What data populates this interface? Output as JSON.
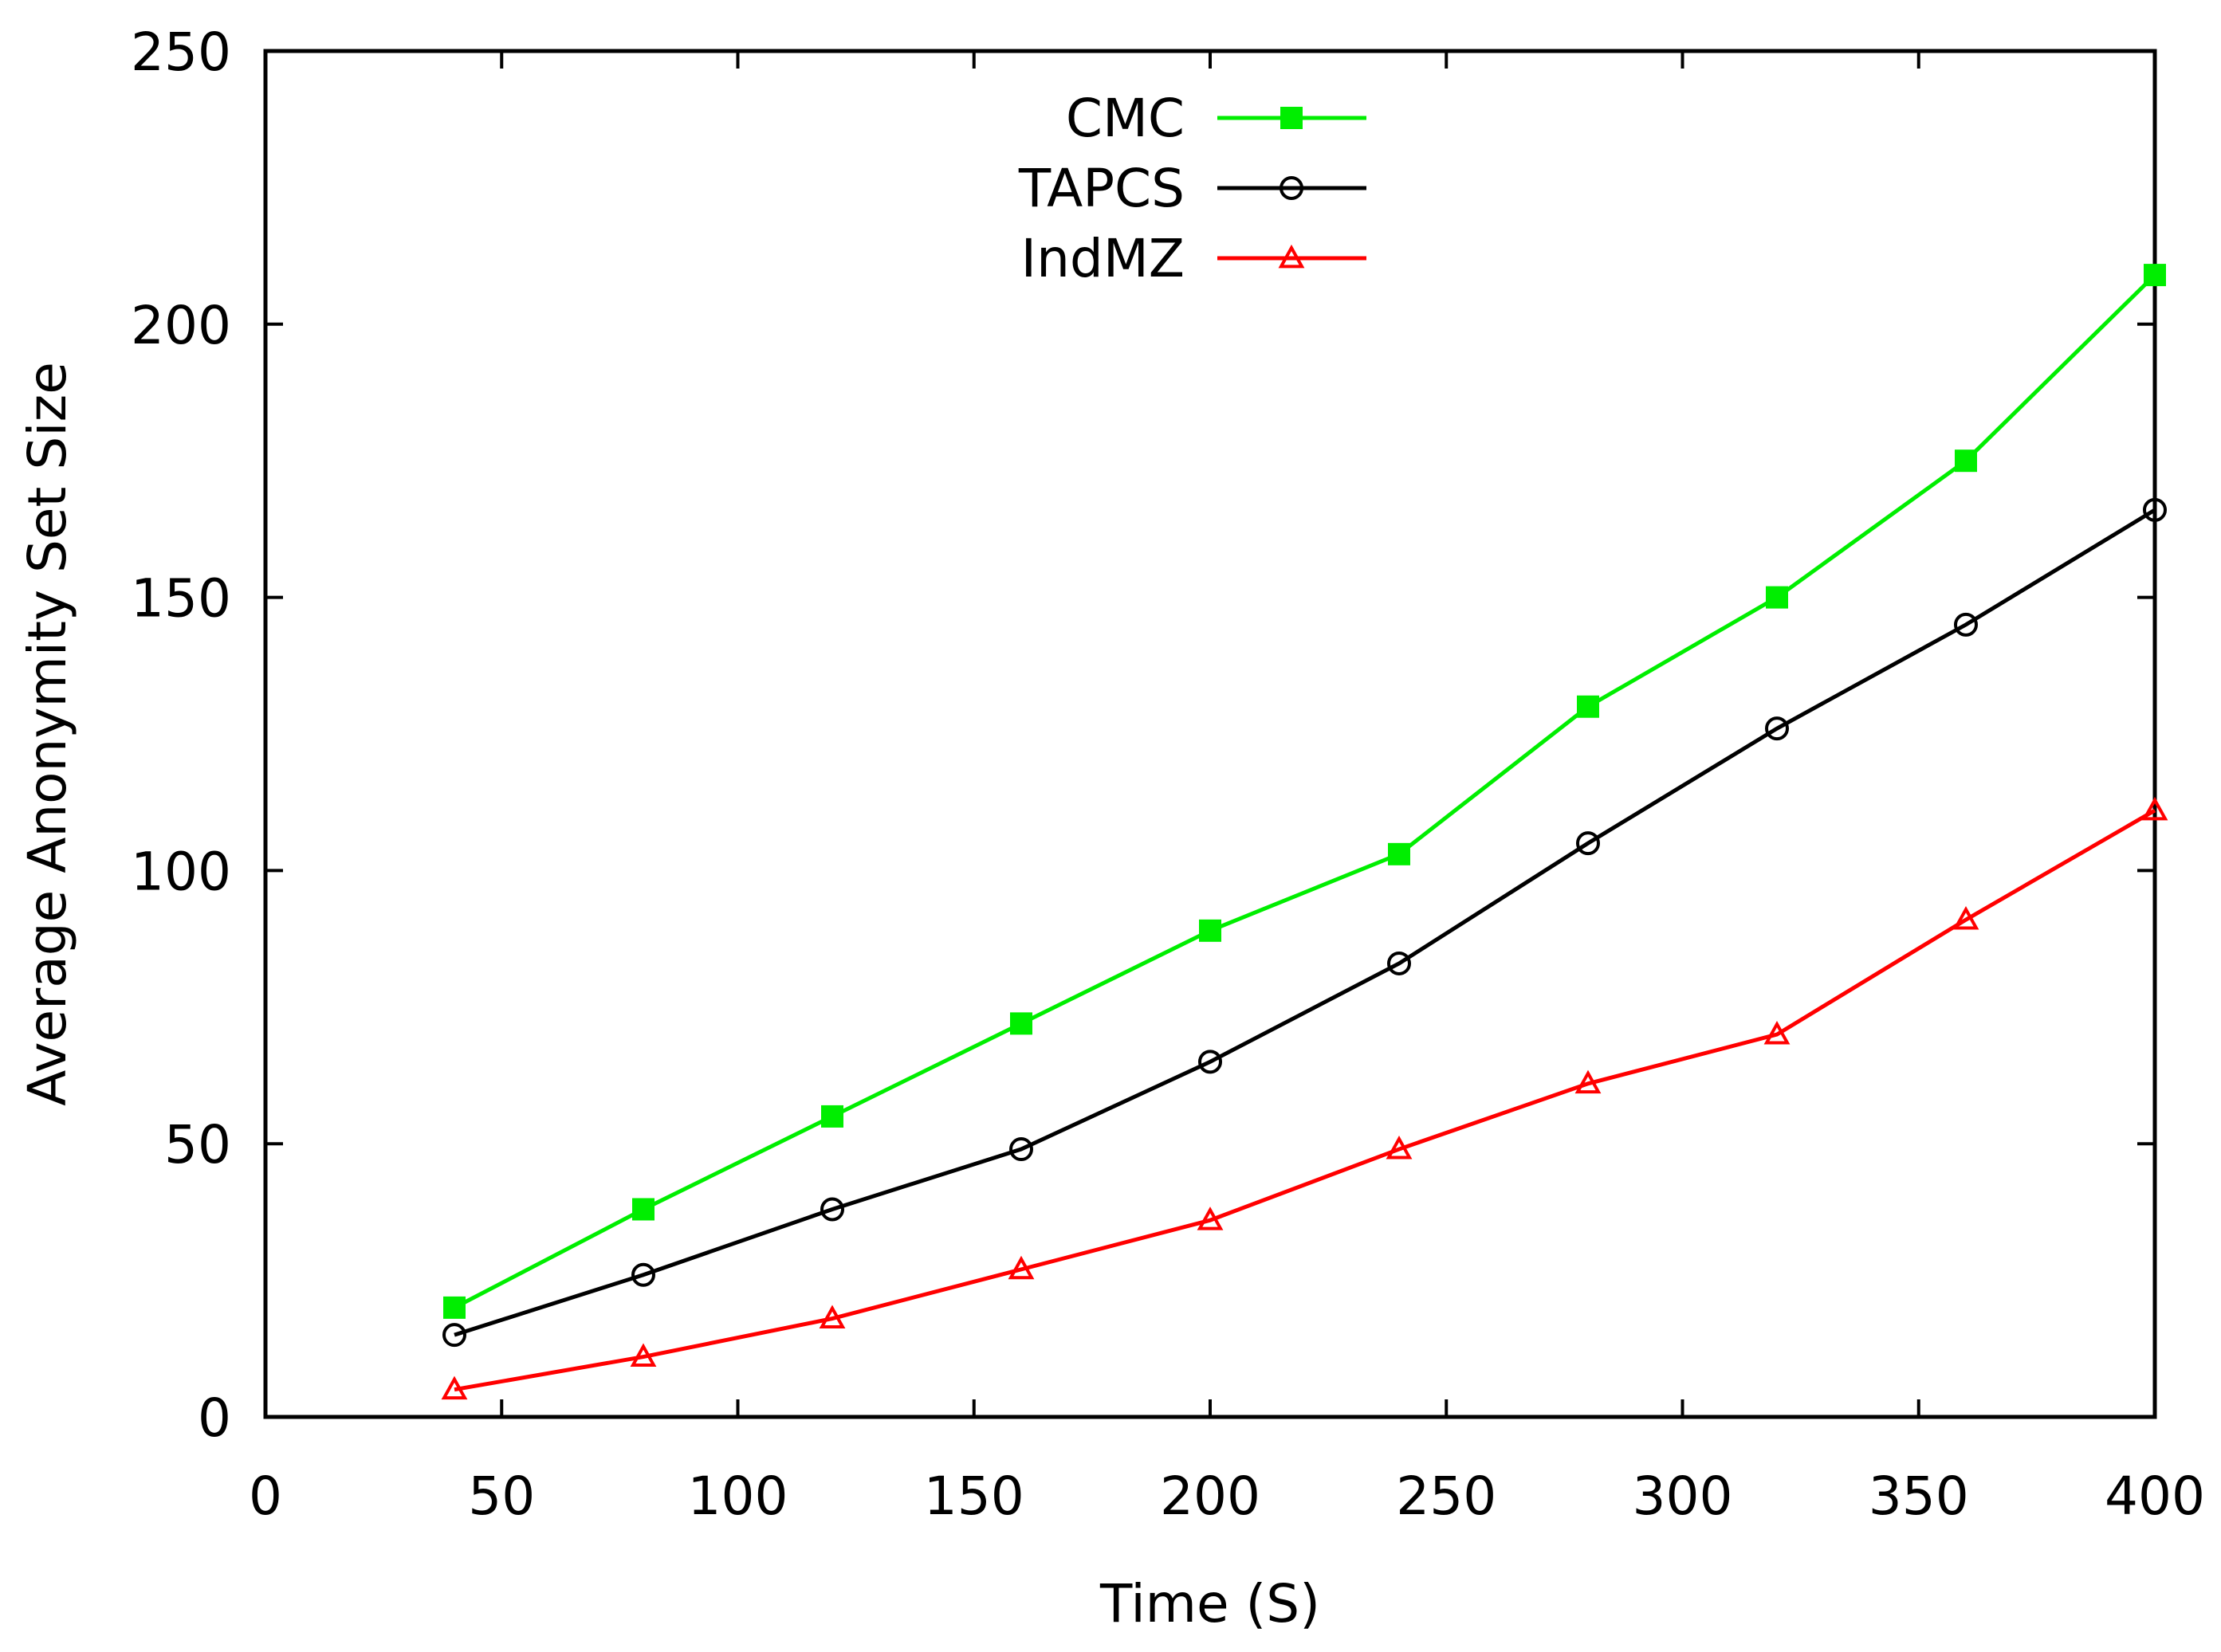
{
  "chart_data": {
    "type": "line",
    "title": "",
    "xlabel": "Time (S)",
    "ylabel": "Average Anonymity Set Size",
    "xlim": [
      0,
      400
    ],
    "ylim": [
      0,
      250
    ],
    "xticks": [
      0,
      50,
      100,
      150,
      200,
      250,
      300,
      350,
      400
    ],
    "yticks": [
      0,
      50,
      100,
      150,
      200,
      250
    ],
    "grid": false,
    "legend_position": "top-center",
    "x": [
      40,
      80,
      120,
      160,
      200,
      240,
      280,
      320,
      360,
      400
    ],
    "series": [
      {
        "name": "CMC",
        "color": "#00ee00",
        "marker": "filled-square",
        "values": [
          20,
          38,
          55,
          72,
          89,
          103,
          130,
          150,
          175,
          209
        ]
      },
      {
        "name": "TAPCS",
        "color": "#000000",
        "marker": "open-circle",
        "values": [
          15,
          26,
          38,
          49,
          65,
          83,
          105,
          126,
          145,
          166
        ]
      },
      {
        "name": "IndMZ",
        "color": "#ff0000",
        "marker": "open-triangle",
        "values": [
          5,
          11,
          18,
          27,
          36,
          49,
          61,
          70,
          91,
          111
        ]
      }
    ]
  }
}
